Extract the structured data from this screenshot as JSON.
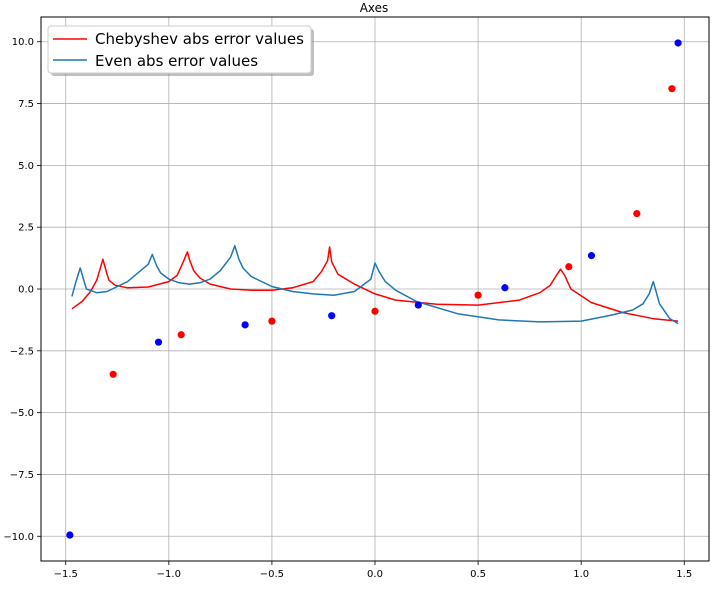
{
  "chart_data": {
    "type": "line",
    "title": "Axes",
    "xlabel": "",
    "ylabel": "",
    "xlim": [
      -1.62,
      1.62
    ],
    "ylim": [
      -11.0,
      11.0
    ],
    "xticks": [
      -1.5,
      -1.0,
      -0.5,
      0.0,
      0.5,
      1.0,
      1.5
    ],
    "xtick_labels": [
      "−1.5",
      "−1.0",
      "−0.5",
      "0.0",
      "0.5",
      "1.0",
      "1.5"
    ],
    "yticks": [
      -10.0,
      -7.5,
      -5.0,
      -2.5,
      0.0,
      2.5,
      5.0,
      7.5,
      10.0
    ],
    "ytick_labels": [
      "−10.0",
      "−7.5",
      "−5.0",
      "−2.5",
      "0.0",
      "2.5",
      "5.0",
      "7.5",
      "10.0"
    ],
    "grid": true,
    "legend_position": "top-left",
    "series": [
      {
        "name": "Chebyshev abs error values",
        "kind": "line",
        "color": "#ff0000",
        "x": [
          -1.47,
          -1.42,
          -1.38,
          -1.35,
          -1.32,
          -1.3,
          -1.29,
          -1.26,
          -1.2,
          -1.1,
          -1.0,
          -0.96,
          -0.93,
          -0.91,
          -0.9,
          -0.88,
          -0.85,
          -0.8,
          -0.7,
          -0.6,
          -0.5,
          -0.4,
          -0.3,
          -0.26,
          -0.23,
          -0.22,
          -0.21,
          -0.18,
          -0.1,
          0.0,
          0.1,
          0.3,
          0.5,
          0.7,
          0.8,
          0.85,
          0.88,
          0.9,
          0.92,
          0.95,
          1.05,
          1.2,
          1.35,
          1.47
        ],
        "y": [
          -0.8,
          -0.5,
          -0.1,
          0.35,
          1.2,
          0.6,
          0.35,
          0.15,
          0.05,
          0.08,
          0.3,
          0.55,
          1.1,
          1.5,
          1.2,
          0.75,
          0.45,
          0.2,
          0.0,
          -0.05,
          -0.05,
          0.05,
          0.3,
          0.7,
          1.15,
          1.7,
          1.1,
          0.6,
          0.2,
          -0.2,
          -0.45,
          -0.62,
          -0.65,
          -0.45,
          -0.15,
          0.15,
          0.55,
          0.8,
          0.55,
          0.0,
          -0.55,
          -0.95,
          -1.2,
          -1.3
        ]
      },
      {
        "name": "Even abs error values",
        "kind": "line",
        "color": "#1f77b4",
        "x": [
          -1.47,
          -1.45,
          -1.43,
          -1.4,
          -1.35,
          -1.3,
          -1.2,
          -1.1,
          -1.08,
          -1.06,
          -1.04,
          -1.0,
          -0.95,
          -0.9,
          -0.85,
          -0.8,
          -0.75,
          -0.7,
          -0.68,
          -0.66,
          -0.64,
          -0.6,
          -0.5,
          -0.4,
          -0.3,
          -0.2,
          -0.1,
          -0.02,
          0.0,
          0.02,
          0.05,
          0.1,
          0.2,
          0.4,
          0.6,
          0.8,
          1.0,
          1.15,
          1.25,
          1.3,
          1.33,
          1.35,
          1.38,
          1.43,
          1.47
        ],
        "y": [
          -0.3,
          0.3,
          0.85,
          0.0,
          -0.15,
          -0.1,
          0.3,
          1.0,
          1.4,
          0.95,
          0.65,
          0.4,
          0.25,
          0.2,
          0.25,
          0.4,
          0.75,
          1.3,
          1.75,
          1.2,
          0.85,
          0.5,
          0.1,
          -0.1,
          -0.2,
          -0.25,
          -0.1,
          0.4,
          1.05,
          0.7,
          0.3,
          -0.05,
          -0.5,
          -1.0,
          -1.25,
          -1.33,
          -1.3,
          -1.05,
          -0.85,
          -0.6,
          -0.2,
          0.3,
          -0.6,
          -1.2,
          -1.4
        ]
      },
      {
        "name": "",
        "kind": "scatter",
        "color": "#ff0000",
        "x": [
          -1.27,
          -0.94,
          -0.5,
          0.0,
          0.5,
          0.94,
          1.27,
          1.44
        ],
        "y": [
          -3.45,
          -1.85,
          -1.3,
          -0.9,
          -0.25,
          0.9,
          3.05,
          8.1
        ]
      },
      {
        "name": "",
        "kind": "scatter",
        "color": "#0000ff",
        "x": [
          -1.48,
          -1.05,
          -0.63,
          -0.21,
          0.21,
          0.63,
          1.05,
          1.47
        ],
        "y": [
          -9.95,
          -2.15,
          -1.45,
          -1.08,
          -0.65,
          0.05,
          1.35,
          9.95
        ]
      }
    ]
  },
  "legend": {
    "entries": [
      {
        "label": "Chebyshev abs error values",
        "color": "#ff0000"
      },
      {
        "label": "Even abs error values",
        "color": "#1f77b4"
      }
    ]
  }
}
